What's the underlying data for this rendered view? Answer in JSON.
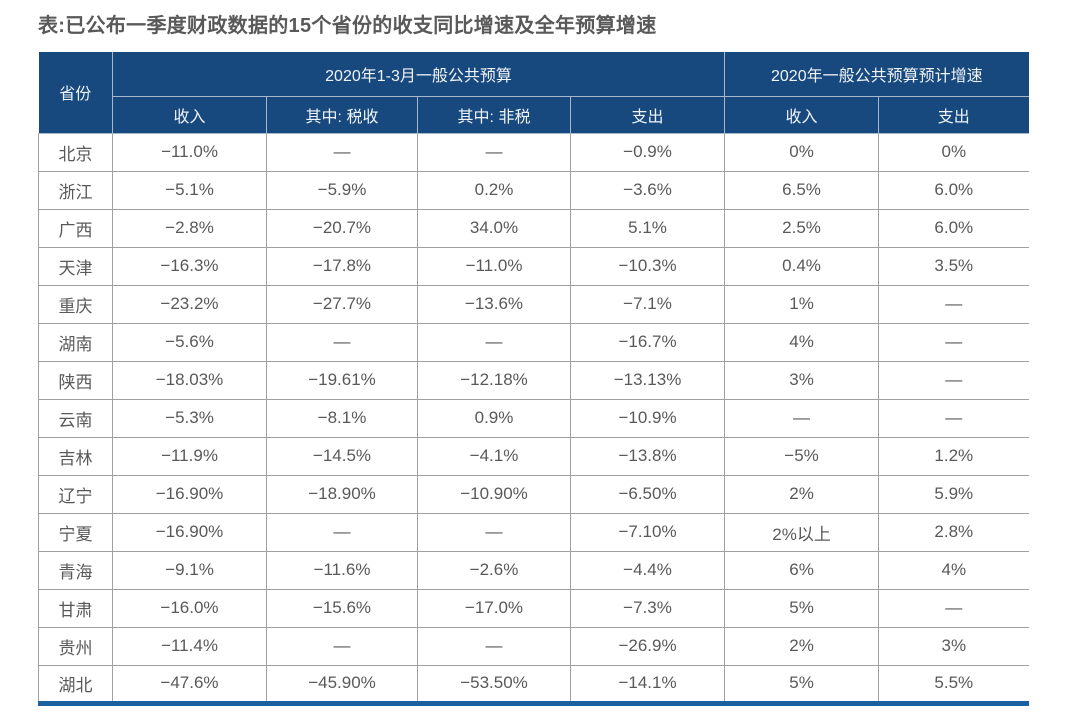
{
  "title": "表:已公布一季度财政数据的15个省份的收支同比增速及全年预算增速",
  "colors": {
    "header_background": "#17497E",
    "header_text": "#EFF3F8",
    "body_text": "#595959",
    "grid_line": "#A0A0A0",
    "bottom_border": "#1A5FA0"
  },
  "chart_data": {
    "type": "table",
    "title": "表:已公布一季度财政数据的15个省份的收支同比增速及全年预算增速",
    "header": {
      "province": "省份",
      "group1": "2020年1-3月一般公共预算",
      "group2": "2020年一般公共预算预计增速",
      "sub": [
        "收入",
        "其中: 税收",
        "其中: 非税",
        "支出",
        "收入",
        "支出"
      ]
    },
    "rows": [
      {
        "province": "北京",
        "values": [
          "−11.0%",
          "—",
          "—",
          "−0.9%",
          "0%",
          "0%"
        ]
      },
      {
        "province": "浙江",
        "values": [
          "−5.1%",
          "−5.9%",
          "0.2%",
          "−3.6%",
          "6.5%",
          "6.0%"
        ]
      },
      {
        "province": "广西",
        "values": [
          "−2.8%",
          "−20.7%",
          "34.0%",
          "5.1%",
          "2.5%",
          "6.0%"
        ]
      },
      {
        "province": "天津",
        "values": [
          "−16.3%",
          "−17.8%",
          "−11.0%",
          "−10.3%",
          "0.4%",
          "3.5%"
        ]
      },
      {
        "province": "重庆",
        "values": [
          "−23.2%",
          "−27.7%",
          "−13.6%",
          "−7.1%",
          "1%",
          "—"
        ]
      },
      {
        "province": "湖南",
        "values": [
          "−5.6%",
          "—",
          "—",
          "−16.7%",
          "4%",
          "—"
        ]
      },
      {
        "province": "陕西",
        "values": [
          "−18.03%",
          "−19.61%",
          "−12.18%",
          "−13.13%",
          "3%",
          "—"
        ]
      },
      {
        "province": "云南",
        "values": [
          "−5.3%",
          "−8.1%",
          "0.9%",
          "−10.9%",
          "—",
          "—"
        ]
      },
      {
        "province": "吉林",
        "values": [
          "−11.9%",
          "−14.5%",
          "−4.1%",
          "−13.8%",
          "−5%",
          "1.2%"
        ]
      },
      {
        "province": "辽宁",
        "values": [
          "−16.90%",
          "−18.90%",
          "−10.90%",
          "−6.50%",
          "2%",
          "5.9%"
        ]
      },
      {
        "province": "宁夏",
        "values": [
          "−16.90%",
          "—",
          "—",
          "−7.10%",
          "2%以上",
          "2.8%"
        ]
      },
      {
        "province": "青海",
        "values": [
          "−9.1%",
          "−11.6%",
          "−2.6%",
          "−4.4%",
          "6%",
          "4%"
        ]
      },
      {
        "province": "甘肃",
        "values": [
          "−16.0%",
          "−15.6%",
          "−17.0%",
          "−7.3%",
          "5%",
          "—"
        ]
      },
      {
        "province": "贵州",
        "values": [
          "−11.4%",
          "—",
          "—",
          "−26.9%",
          "2%",
          "3%"
        ]
      },
      {
        "province": "湖北",
        "values": [
          "−47.6%",
          "−45.90%",
          "−53.50%",
          "−14.1%",
          "5%",
          "5.5%"
        ]
      }
    ]
  }
}
